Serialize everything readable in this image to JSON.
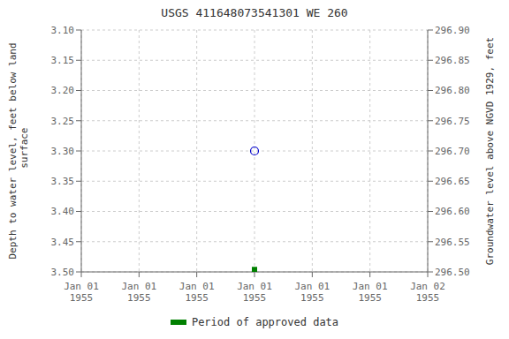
{
  "chart_data": {
    "type": "scatter",
    "title": "USGS 411648073541301 WE 260",
    "y_label": "Depth to water level, feet below land\n surface",
    "y2_label": "Groundwater level above NGVD 1929, feet",
    "categories": [
      "Jan 01\n1955",
      "Jan 01\n1955",
      "Jan 01\n1955",
      "Jan 01\n1955",
      "Jan 01\n1955",
      "Jan 01\n1955",
      "Jan 02\n1955"
    ],
    "series": [
      {
        "values": [
          null,
          null,
          null,
          3.3,
          null,
          null,
          null
        ],
        "color": "#0000cc",
        "marker": "circle_open"
      },
      {
        "name": "Period of approved data",
        "values": [
          null,
          null,
          null,
          3.496,
          null,
          null,
          null
        ],
        "color": "#008000",
        "marker": "square"
      }
    ],
    "ylim": [
      3.5,
      3.1
    ],
    "yticks": [
      {
        "value": 3.1,
        "label": "3.10"
      },
      {
        "value": 3.15,
        "label": "3.15"
      },
      {
        "value": 3.2,
        "label": "3.20"
      },
      {
        "value": 3.25,
        "label": "3.25"
      },
      {
        "value": 3.3,
        "label": "3.30"
      },
      {
        "value": 3.35,
        "label": "3.35"
      },
      {
        "value": 3.4,
        "label": "3.40"
      },
      {
        "value": 3.45,
        "label": "3.45"
      },
      {
        "value": 3.5,
        "label": "3.50"
      }
    ],
    "y2lim": [
      296.5,
      296.9
    ],
    "y2ticks": [
      {
        "value": 296.9,
        "label": "296.90"
      },
      {
        "value": 296.85,
        "label": "296.85"
      },
      {
        "value": 296.8,
        "label": "296.80"
      },
      {
        "value": 296.75,
        "label": "296.75"
      },
      {
        "value": 296.7,
        "label": "296.70"
      },
      {
        "value": 296.65,
        "label": "296.65"
      },
      {
        "value": 296.6,
        "label": "296.60"
      },
      {
        "value": 296.55,
        "label": "296.55"
      },
      {
        "value": 296.5,
        "label": "296.50"
      }
    ],
    "grid": true,
    "legend": "bottom"
  }
}
